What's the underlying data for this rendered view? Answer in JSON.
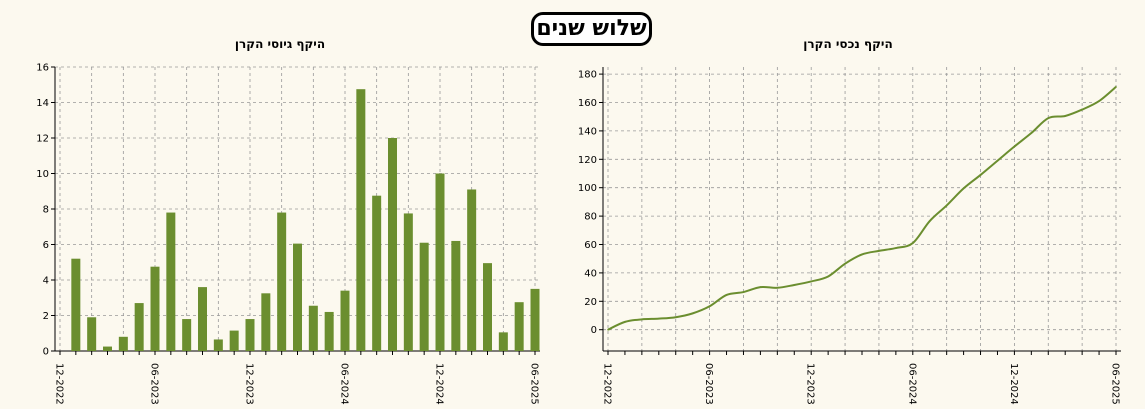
{
  "page_title": "שלוש שנים",
  "colors": {
    "accent": "#6b8e2f",
    "background": "#fcf9ef",
    "grid": "#999999"
  },
  "chart_data": [
    {
      "type": "bar",
      "title": "היקף גיוסי הקרן",
      "xlabel": "",
      "ylabel": "",
      "ylim": [
        0,
        16
      ],
      "yticks": [
        0,
        2,
        4,
        6,
        8,
        10,
        12,
        14,
        16
      ],
      "categories": [
        "12-2022",
        "01-2023",
        "02-2023",
        "03-2023",
        "04-2023",
        "05-2023",
        "06-2023",
        "07-2023",
        "08-2023",
        "09-2023",
        "10-2023",
        "11-2023",
        "12-2023",
        "01-2024",
        "02-2024",
        "03-2024",
        "04-2024",
        "05-2024",
        "06-2024",
        "07-2024",
        "08-2024",
        "09-2024",
        "10-2024",
        "11-2024",
        "12-2024",
        "01-2025",
        "02-2025",
        "03-2025",
        "04-2025",
        "05-2025",
        "06-2025"
      ],
      "values": [
        0,
        5.2,
        1.9,
        0.25,
        0.8,
        2.7,
        4.75,
        7.8,
        1.8,
        3.6,
        0.65,
        1.15,
        1.8,
        3.25,
        7.8,
        6.05,
        2.55,
        2.2,
        3.4,
        14.75,
        8.75,
        12.0,
        7.75,
        6.1,
        10.0,
        6.2,
        9.1,
        4.95,
        1.05,
        2.75,
        3.5
      ],
      "xtick_labels": [
        "12-2022",
        "06-2023",
        "12-2023",
        "06-2024",
        "12-2024",
        "06-2025"
      ],
      "grid": true
    },
    {
      "type": "line",
      "title": "היקף נכסי הקרן",
      "xlabel": "",
      "ylabel": "",
      "ylim": [
        -15,
        185
      ],
      "yticks": [
        0,
        20,
        40,
        60,
        80,
        100,
        120,
        140,
        160,
        180
      ],
      "x": [
        "12-2022",
        "01-2023",
        "02-2023",
        "03-2023",
        "04-2023",
        "05-2023",
        "06-2023",
        "07-2023",
        "08-2023",
        "09-2023",
        "10-2023",
        "11-2023",
        "12-2023",
        "01-2024",
        "02-2024",
        "03-2024",
        "04-2024",
        "05-2024",
        "06-2024",
        "07-2024",
        "08-2024",
        "09-2024",
        "10-2024",
        "11-2024",
        "12-2024",
        "01-2025",
        "02-2025",
        "03-2025",
        "04-2025",
        "05-2025",
        "06-2025"
      ],
      "series": [
        {
          "values": [
            0,
            5.5,
            7.3,
            7.8,
            8.8,
            11.5,
            16.5,
            24.5,
            26.5,
            30,
            29.5,
            31.5,
            34,
            37.5,
            46.5,
            53,
            55.5,
            57.5,
            61,
            76.5,
            87.5,
            99.5,
            109,
            119,
            129,
            138.5,
            149,
            150.5,
            155,
            161,
            171
          ]
        }
      ],
      "xtick_labels": [
        "12-2022",
        "06-2023",
        "12-2023",
        "06-2024",
        "12-2024",
        "06-2025"
      ],
      "grid": true
    }
  ]
}
